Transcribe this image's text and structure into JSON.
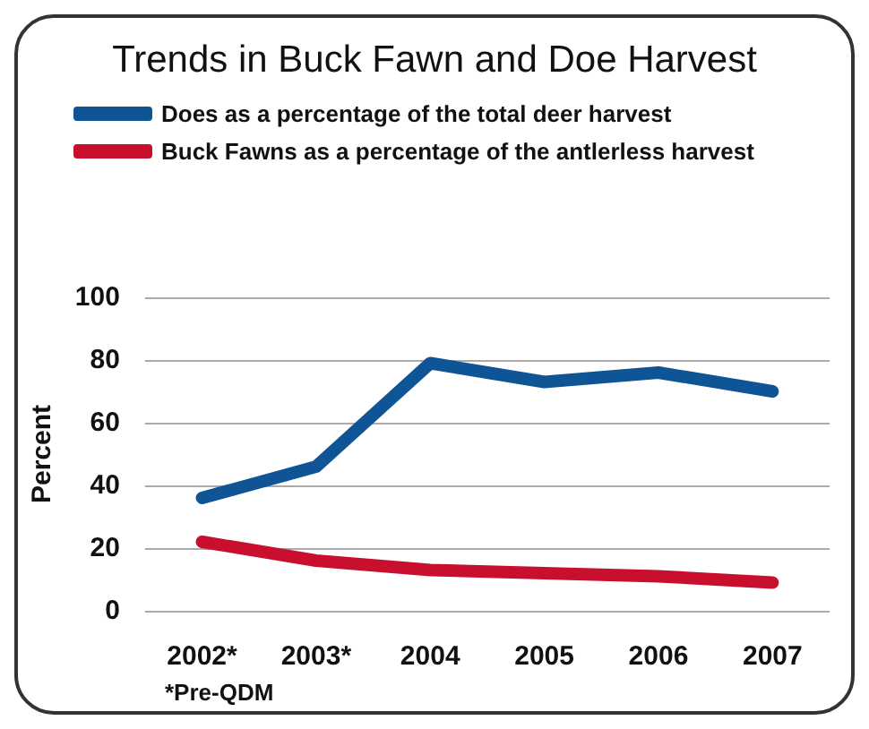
{
  "chart_data": {
    "type": "line",
    "title": "Trends in Buck Fawn and Doe Harvest",
    "ylabel": "Percent",
    "categories": [
      "2002*",
      "2003*",
      "2004",
      "2005",
      "2006",
      "2007"
    ],
    "series": [
      {
        "name": "Does as a percentage of the total deer harvest",
        "color": "#0f5596",
        "values": [
          36,
          46,
          79,
          73,
          76,
          70
        ]
      },
      {
        "name": "Buck Fawns as a percentage of the antlerless harvest",
        "color": "#c8102e",
        "values": [
          22,
          16,
          13,
          12,
          11,
          9
        ]
      }
    ],
    "ylim": [
      0,
      100
    ],
    "yticks": [
      0,
      20,
      40,
      60,
      80,
      100
    ],
    "grid": "y",
    "legend": "top left",
    "marker": "none",
    "line_style": "solid",
    "annotations": [
      "*Pre-QDM"
    ]
  }
}
